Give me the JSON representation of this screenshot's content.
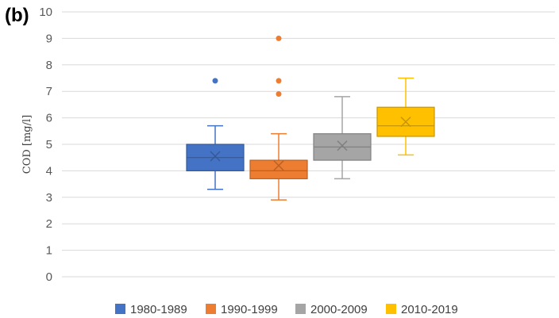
{
  "panel_label": "(b)",
  "chart_data": {
    "type": "box",
    "title": "",
    "xlabel": "",
    "ylabel": "COD [mg/l]",
    "ylim": [
      0,
      10
    ],
    "yticks": [
      0,
      1,
      2,
      3,
      4,
      5,
      6,
      7,
      8,
      9,
      10
    ],
    "grid": true,
    "legend_position": "bottom",
    "series": [
      {
        "name": "1980-1989",
        "color": "#4472c4",
        "whisker_low": 3.3,
        "q1": 4.0,
        "median": 4.5,
        "q3": 5.0,
        "whisker_high": 5.7,
        "mean": 4.55,
        "outliers": [
          7.4
        ]
      },
      {
        "name": "1990-1999",
        "color": "#ed7d31",
        "whisker_low": 2.9,
        "q1": 3.7,
        "median": 4.0,
        "q3": 4.4,
        "whisker_high": 5.4,
        "mean": 4.2,
        "outliers": [
          6.9,
          7.4,
          9.0
        ]
      },
      {
        "name": "2000-2009",
        "color": "#a5a5a5",
        "whisker_low": 3.7,
        "q1": 4.4,
        "median": 4.9,
        "q3": 5.4,
        "whisker_high": 6.8,
        "mean": 4.95,
        "outliers": []
      },
      {
        "name": "2010-2019",
        "color": "#ffc000",
        "whisker_low": 4.6,
        "q1": 5.3,
        "median": 5.7,
        "q3": 6.4,
        "whisker_high": 7.5,
        "mean": 5.85,
        "outliers": []
      }
    ]
  }
}
